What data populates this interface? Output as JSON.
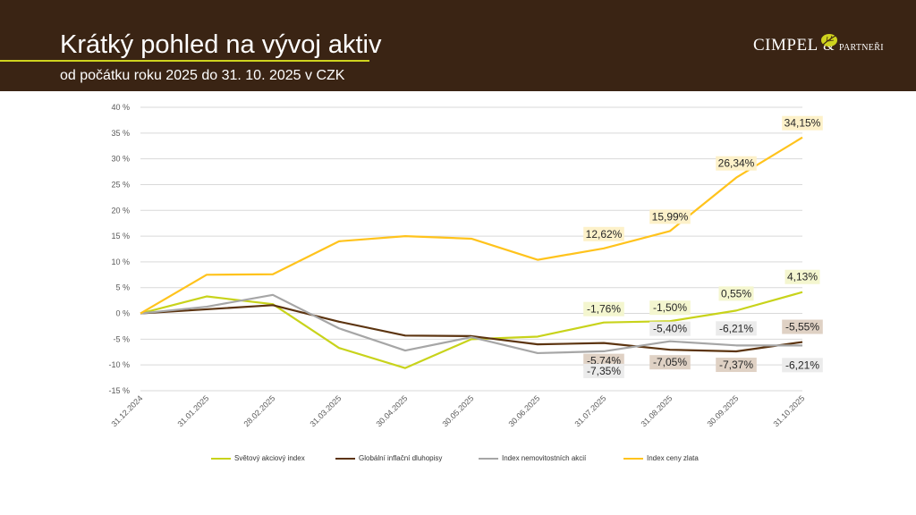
{
  "slide": {
    "title": "Krátký pohled na vývoj aktiv",
    "subtitle": "od počátku roku 2025 do 31. 10. 2025 v CZK",
    "logo": {
      "word": "CIMPEL",
      "amp": "&",
      "small": "PARTNEŘI",
      "icon": "leaf-icon"
    }
  },
  "colors": {
    "header_bg": "#3a2414",
    "accent_line": "#cfd31e",
    "world_equity": "#c8d31b",
    "global_inflation_bonds": "#5c3410",
    "real_estate": "#a6a6a6",
    "gold": "#ffc31c",
    "label_gold_bg": "#fdf1c9",
    "label_green_bg": "#f4f6cf",
    "label_grey_bg": "#ebebeb",
    "label_brown_bg": "#dfd1c4"
  },
  "chart_data": {
    "type": "line",
    "x": [
      "31.12.2024",
      "31.01.2025",
      "28.02.2025",
      "31.03.2025",
      "30.04.2025",
      "30.05.2025",
      "30.06.2025",
      "31.07.2025",
      "31.08.2025",
      "30.09.2025",
      "31.10.2025"
    ],
    "ylim": [
      -15,
      40
    ],
    "yticks": [
      "-15 %",
      "-10 %",
      "-5 %",
      "0 %",
      "5 %",
      "10 %",
      "15 %",
      "20 %",
      "25 %",
      "30 %",
      "35 %",
      "40 %"
    ],
    "ytick_values": [
      -15,
      -10,
      -5,
      0,
      5,
      10,
      15,
      20,
      25,
      30,
      35,
      40
    ],
    "grid": true,
    "legend_position": "bottom",
    "series": [
      {
        "name": "Světový akciový index",
        "color_key": "world_equity",
        "values": [
          0,
          3.3,
          1.8,
          -6.7,
          -10.6,
          -5.0,
          -4.5,
          -1.76,
          -1.5,
          0.55,
          4.13
        ],
        "labels": {
          "7": "-1,76%",
          "8": "-1,50%",
          "9": "0,55%",
          "10": "4,13%"
        }
      },
      {
        "name": "Globální inflační dluhopisy",
        "color_key": "global_inflation_bonds",
        "values": [
          0,
          0.8,
          1.6,
          -1.6,
          -4.3,
          -4.4,
          -6.0,
          -5.74,
          -7.05,
          -7.37,
          -5.55
        ],
        "labels": {
          "7": "-5,74%",
          "8": "-7,05%",
          "9": "-7,37%",
          "10": "-5,55%"
        }
      },
      {
        "name": "Index nemovitostních akcií",
        "color_key": "real_estate",
        "values": [
          0,
          1.3,
          3.6,
          -2.9,
          -7.2,
          -4.6,
          -7.7,
          -7.35,
          -5.4,
          -6.21,
          -6.21
        ],
        "labels": {
          "7": "-7,35%",
          "8": "-5,40%",
          "9": "-6,21%",
          "10": "-6,21%"
        }
      },
      {
        "name": "Index ceny zlata",
        "color_key": "gold",
        "values": [
          0,
          7.5,
          7.6,
          14.0,
          15.0,
          14.5,
          10.4,
          12.62,
          15.99,
          26.34,
          34.15
        ],
        "labels": {
          "7": "12,62%",
          "8": "15,99%",
          "9": "26,34%",
          "10": "34,15%"
        }
      }
    ]
  }
}
